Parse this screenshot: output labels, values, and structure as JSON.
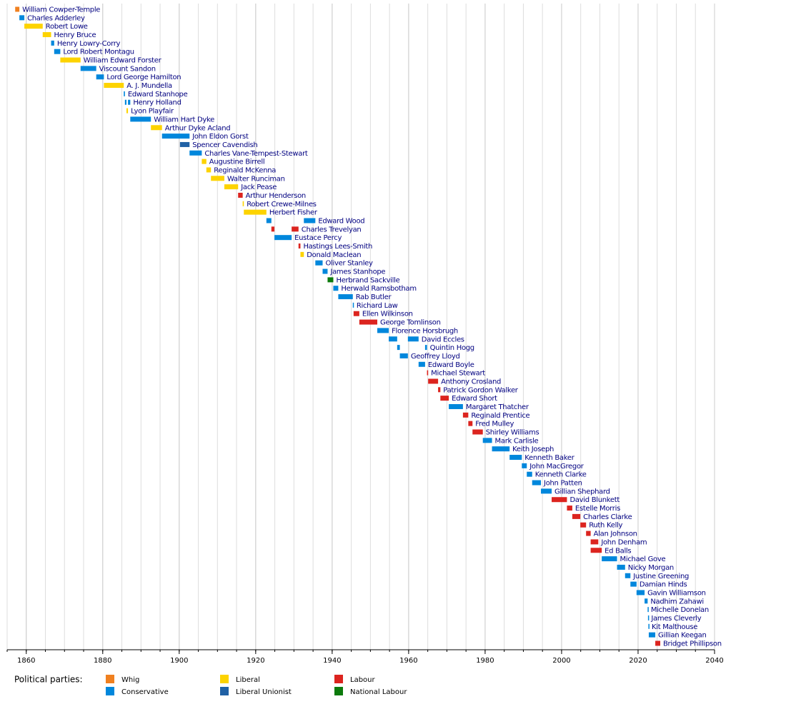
{
  "chart_data": {
    "type": "timeline",
    "xlim": [
      1855,
      2040
    ],
    "xticks": [
      1860,
      1880,
      1900,
      1920,
      1940,
      1960,
      1980,
      2000,
      2020,
      2040
    ],
    "minor_step": 5,
    "grid": true,
    "legend_title": "Political parties:",
    "parties": [
      {
        "name": "Whig",
        "color": "#f08020"
      },
      {
        "name": "Conservative",
        "color": "#0087dc"
      },
      {
        "name": "Liberal",
        "color": "#fdd300"
      },
      {
        "name": "Liberal Unionist",
        "color": "#2061a5"
      },
      {
        "name": "Labour",
        "color": "#dc241f"
      },
      {
        "name": "National Labour",
        "color": "#0c7a0c"
      }
    ],
    "rows": [
      {
        "name": "William Cowper-Temple",
        "party": "Whig",
        "periods": [
          {
            "start": 1857.1,
            "end": 1858.2
          }
        ]
      },
      {
        "name": "Charles Adderley",
        "party": "Conservative",
        "periods": [
          {
            "start": 1858.2,
            "end": 1859.5
          }
        ]
      },
      {
        "name": "Robert Lowe",
        "party": "Liberal",
        "periods": [
          {
            "start": 1859.5,
            "end": 1864.3
          }
        ]
      },
      {
        "name": "Henry Bruce",
        "party": "Liberal",
        "periods": [
          {
            "start": 1864.3,
            "end": 1866.5
          }
        ]
      },
      {
        "name": "Henry Lowry-Corry",
        "party": "Conservative",
        "periods": [
          {
            "start": 1866.5,
            "end": 1867.3
          }
        ]
      },
      {
        "name": "Lord Robert Montagu",
        "party": "Conservative",
        "periods": [
          {
            "start": 1867.3,
            "end": 1868.9
          }
        ]
      },
      {
        "name": "William Edward Forster",
        "party": "Liberal",
        "periods": [
          {
            "start": 1868.9,
            "end": 1874.2
          }
        ]
      },
      {
        "name": "Viscount Sandon",
        "party": "Conservative",
        "periods": [
          {
            "start": 1874.2,
            "end": 1878.3
          }
        ]
      },
      {
        "name": "Lord George Hamilton",
        "party": "Conservative",
        "periods": [
          {
            "start": 1878.3,
            "end": 1880.3
          }
        ]
      },
      {
        "name": "A. J. Mundella",
        "party": "Liberal",
        "periods": [
          {
            "start": 1880.3,
            "end": 1885.5
          }
        ]
      },
      {
        "name": "Edward Stanhope",
        "party": "Conservative",
        "periods": [
          {
            "start": 1885.5,
            "end": 1885.8
          }
        ]
      },
      {
        "name": "Henry Holland",
        "party": "Conservative",
        "periods": [
          {
            "start": 1885.8,
            "end": 1886.2
          },
          {
            "start": 1886.6,
            "end": 1887.2
          }
        ]
      },
      {
        "name": "Lyon Playfair",
        "party": "Liberal",
        "periods": [
          {
            "start": 1886.2,
            "end": 1886.6
          }
        ]
      },
      {
        "name": "William Hart Dyke",
        "party": "Conservative",
        "periods": [
          {
            "start": 1887.2,
            "end": 1892.6
          }
        ]
      },
      {
        "name": "Arthur Dyke Acland",
        "party": "Liberal",
        "periods": [
          {
            "start": 1892.6,
            "end": 1895.5
          }
        ]
      },
      {
        "name": "John Eldon Gorst",
        "party": "Conservative",
        "periods": [
          {
            "start": 1895.5,
            "end": 1902.7
          }
        ]
      },
      {
        "name": "Spencer Cavendish",
        "party": "Liberal Unionist",
        "periods": [
          {
            "start": 1900.2,
            "end": 1902.7
          }
        ]
      },
      {
        "name": "Charles Vane-Tempest-Stewart",
        "party": "Conservative",
        "periods": [
          {
            "start": 1902.7,
            "end": 1905.9
          }
        ]
      },
      {
        "name": "Augustine Birrell",
        "party": "Liberal",
        "periods": [
          {
            "start": 1905.9,
            "end": 1907.1
          }
        ]
      },
      {
        "name": "Reginald McKenna",
        "party": "Liberal",
        "periods": [
          {
            "start": 1907.1,
            "end": 1908.3
          }
        ]
      },
      {
        "name": "Walter Runciman",
        "party": "Liberal",
        "periods": [
          {
            "start": 1908.3,
            "end": 1911.8
          }
        ]
      },
      {
        "name": "Jack Pease",
        "party": "Liberal",
        "periods": [
          {
            "start": 1911.8,
            "end": 1915.4
          }
        ]
      },
      {
        "name": "Arthur Henderson",
        "party": "Labour",
        "periods": [
          {
            "start": 1915.4,
            "end": 1916.6
          }
        ]
      },
      {
        "name": "Robert Crewe-Milnes",
        "party": "Liberal",
        "periods": [
          {
            "start": 1916.6,
            "end": 1916.9
          }
        ]
      },
      {
        "name": "Herbert Fisher",
        "party": "Liberal",
        "periods": [
          {
            "start": 1916.9,
            "end": 1922.8
          }
        ]
      },
      {
        "name": "Edward Wood",
        "party": "Conservative",
        "periods": [
          {
            "start": 1922.8,
            "end": 1924.1
          },
          {
            "start": 1932.6,
            "end": 1935.6
          }
        ]
      },
      {
        "name": "Charles Trevelyan",
        "party": "Labour",
        "periods": [
          {
            "start": 1924.1,
            "end": 1924.9
          },
          {
            "start": 1929.4,
            "end": 1931.2
          }
        ]
      },
      {
        "name": "Eustace Percy",
        "party": "Conservative",
        "periods": [
          {
            "start": 1924.9,
            "end": 1929.4
          }
        ]
      },
      {
        "name": "Hastings Lees-Smith",
        "party": "Labour",
        "periods": [
          {
            "start": 1931.2,
            "end": 1931.7
          }
        ]
      },
      {
        "name": "Donald Maclean",
        "party": "Liberal",
        "periods": [
          {
            "start": 1931.7,
            "end": 1932.6
          }
        ]
      },
      {
        "name": "Oliver Stanley",
        "party": "Conservative",
        "periods": [
          {
            "start": 1935.6,
            "end": 1937.5
          }
        ]
      },
      {
        "name": "James Stanhope",
        "party": "Conservative",
        "periods": [
          {
            "start": 1937.5,
            "end": 1938.8
          }
        ]
      },
      {
        "name": "Herbrand Sackville",
        "party": "National Labour",
        "periods": [
          {
            "start": 1938.8,
            "end": 1940.3
          }
        ]
      },
      {
        "name": "Herwald Ramsbotham",
        "party": "Conservative",
        "periods": [
          {
            "start": 1940.3,
            "end": 1941.6
          }
        ]
      },
      {
        "name": "Rab Butler",
        "party": "Conservative",
        "periods": [
          {
            "start": 1941.6,
            "end": 1945.4
          }
        ]
      },
      {
        "name": "Richard Law",
        "party": "Conservative",
        "periods": [
          {
            "start": 1945.4,
            "end": 1945.6
          }
        ]
      },
      {
        "name": "Ellen Wilkinson",
        "party": "Labour",
        "periods": [
          {
            "start": 1945.6,
            "end": 1947.1
          }
        ]
      },
      {
        "name": "George Tomlinson",
        "party": "Labour",
        "periods": [
          {
            "start": 1947.1,
            "end": 1951.8
          }
        ]
      },
      {
        "name": "Florence Horsbrugh",
        "party": "Conservative",
        "periods": [
          {
            "start": 1951.8,
            "end": 1954.8
          }
        ]
      },
      {
        "name": "David Eccles",
        "party": "Conservative",
        "periods": [
          {
            "start": 1954.8,
            "end": 1957.0
          },
          {
            "start": 1959.8,
            "end": 1962.6
          }
        ]
      },
      {
        "name": "Quintin Hogg",
        "party": "Conservative",
        "periods": [
          {
            "start": 1957.0,
            "end": 1957.7
          },
          {
            "start": 1964.3,
            "end": 1964.8
          }
        ]
      },
      {
        "name": "Geoffrey Lloyd",
        "party": "Conservative",
        "periods": [
          {
            "start": 1957.7,
            "end": 1959.8
          }
        ]
      },
      {
        "name": "Edward Boyle",
        "party": "Conservative",
        "periods": [
          {
            "start": 1962.6,
            "end": 1964.3
          }
        ]
      },
      {
        "name": "Michael Stewart",
        "party": "Labour",
        "periods": [
          {
            "start": 1964.8,
            "end": 1965.1
          }
        ]
      },
      {
        "name": "Anthony Crosland",
        "party": "Labour",
        "periods": [
          {
            "start": 1965.1,
            "end": 1967.7
          }
        ]
      },
      {
        "name": "Patrick Gordon Walker",
        "party": "Labour",
        "periods": [
          {
            "start": 1967.7,
            "end": 1968.3
          }
        ]
      },
      {
        "name": "Edward Short",
        "party": "Labour",
        "periods": [
          {
            "start": 1968.3,
            "end": 1970.5
          }
        ]
      },
      {
        "name": "Margaret Thatcher",
        "party": "Conservative",
        "periods": [
          {
            "start": 1970.5,
            "end": 1974.2
          }
        ]
      },
      {
        "name": "Reginald Prentice",
        "party": "Labour",
        "periods": [
          {
            "start": 1974.2,
            "end": 1975.6
          }
        ]
      },
      {
        "name": "Fred Mulley",
        "party": "Labour",
        "periods": [
          {
            "start": 1975.6,
            "end": 1976.7
          }
        ]
      },
      {
        "name": "Shirley Williams",
        "party": "Labour",
        "periods": [
          {
            "start": 1976.7,
            "end": 1979.4
          }
        ]
      },
      {
        "name": "Mark Carlisle",
        "party": "Conservative",
        "periods": [
          {
            "start": 1979.4,
            "end": 1981.8
          }
        ]
      },
      {
        "name": "Keith Joseph",
        "party": "Conservative",
        "periods": [
          {
            "start": 1981.8,
            "end": 1986.4
          }
        ]
      },
      {
        "name": "Kenneth Baker",
        "party": "Conservative",
        "periods": [
          {
            "start": 1986.4,
            "end": 1989.6
          }
        ]
      },
      {
        "name": "John MacGregor",
        "party": "Conservative",
        "periods": [
          {
            "start": 1989.6,
            "end": 1990.9
          }
        ]
      },
      {
        "name": "Kenneth Clarke",
        "party": "Conservative",
        "periods": [
          {
            "start": 1990.9,
            "end": 1992.3
          }
        ]
      },
      {
        "name": "John Patten",
        "party": "Conservative",
        "periods": [
          {
            "start": 1992.3,
            "end": 1994.6
          }
        ]
      },
      {
        "name": "Gillian Shephard",
        "party": "Conservative",
        "periods": [
          {
            "start": 1994.6,
            "end": 1997.4
          }
        ]
      },
      {
        "name": "David Blunkett",
        "party": "Labour",
        "periods": [
          {
            "start": 1997.4,
            "end": 2001.4
          }
        ]
      },
      {
        "name": "Estelle Morris",
        "party": "Labour",
        "periods": [
          {
            "start": 2001.4,
            "end": 2002.8
          }
        ]
      },
      {
        "name": "Charles Clarke",
        "party": "Labour",
        "periods": [
          {
            "start": 2002.8,
            "end": 2004.9
          }
        ]
      },
      {
        "name": "Ruth Kelly",
        "party": "Labour",
        "periods": [
          {
            "start": 2004.9,
            "end": 2006.4
          }
        ]
      },
      {
        "name": "Alan Johnson",
        "party": "Labour",
        "periods": [
          {
            "start": 2006.4,
            "end": 2007.6
          }
        ]
      },
      {
        "name": "John Denham",
        "party": "Labour",
        "periods": [
          {
            "start": 2007.6,
            "end": 2009.6
          }
        ]
      },
      {
        "name": "Ed Balls",
        "party": "Labour",
        "periods": [
          {
            "start": 2007.6,
            "end": 2010.5
          }
        ]
      },
      {
        "name": "Michael Gove",
        "party": "Conservative",
        "periods": [
          {
            "start": 2010.5,
            "end": 2014.5
          }
        ]
      },
      {
        "name": "Nicky Morgan",
        "party": "Conservative",
        "periods": [
          {
            "start": 2014.5,
            "end": 2016.6
          }
        ]
      },
      {
        "name": "Justine Greening",
        "party": "Conservative",
        "periods": [
          {
            "start": 2016.6,
            "end": 2018.0
          }
        ]
      },
      {
        "name": "Damian Hinds",
        "party": "Conservative",
        "periods": [
          {
            "start": 2018.0,
            "end": 2019.6
          }
        ]
      },
      {
        "name": "Gavin Williamson",
        "party": "Conservative",
        "periods": [
          {
            "start": 2019.6,
            "end": 2021.7
          }
        ]
      },
      {
        "name": "Nadhim Zahawi",
        "party": "Conservative",
        "periods": [
          {
            "start": 2021.7,
            "end": 2022.5
          }
        ]
      },
      {
        "name": "Michelle Donelan",
        "party": "Conservative",
        "periods": [
          {
            "start": 2022.5,
            "end": 2022.6
          }
        ]
      },
      {
        "name": "James Cleverly",
        "party": "Conservative",
        "periods": [
          {
            "start": 2022.6,
            "end": 2022.7
          }
        ]
      },
      {
        "name": "Kit Malthouse",
        "party": "Conservative",
        "periods": [
          {
            "start": 2022.7,
            "end": 2022.8
          }
        ]
      },
      {
        "name": "Gillian Keegan",
        "party": "Conservative",
        "periods": [
          {
            "start": 2022.8,
            "end": 2024.5
          }
        ]
      },
      {
        "name": "Bridget Phillipson",
        "party": "Labour",
        "periods": [
          {
            "start": 2024.5,
            "end": 2025.8
          }
        ]
      }
    ]
  }
}
